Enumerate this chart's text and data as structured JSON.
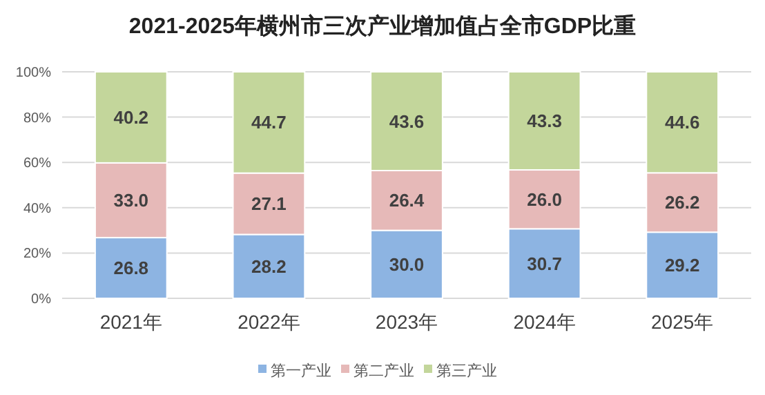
{
  "chart_data": {
    "type": "bar",
    "title": "2021-2025年横州市三次产业增加值占全市GDP比重",
    "stacked": true,
    "categories": [
      "2021年",
      "2022年",
      "2023年",
      "2024年",
      "2025年"
    ],
    "series": [
      {
        "name": "第一产业",
        "color": "#8db4e2",
        "values": [
          26.8,
          28.2,
          30.0,
          30.7,
          29.2
        ],
        "value_labels": [
          "26.8",
          "28.2",
          "30.0",
          "30.7",
          "29.2"
        ]
      },
      {
        "name": "第二产业",
        "color": "#e6b9b8",
        "values": [
          33.0,
          27.1,
          26.4,
          26.0,
          26.2
        ],
        "value_labels": [
          "33.0",
          "27.1",
          "26.4",
          "26.0",
          "26.2"
        ]
      },
      {
        "name": "第三产业",
        "color": "#c3d69b",
        "values": [
          40.2,
          44.7,
          43.6,
          43.3,
          44.6
        ],
        "value_labels": [
          "40.2",
          "44.7",
          "43.6",
          "43.3",
          "44.6"
        ]
      }
    ],
    "ylim": [
      0,
      100
    ],
    "yticks": [
      {
        "value": 0,
        "label": "0%"
      },
      {
        "value": 20,
        "label": "20%"
      },
      {
        "value": 40,
        "label": "40%"
      },
      {
        "value": 60,
        "label": "60%"
      },
      {
        "value": 80,
        "label": "80%"
      },
      {
        "value": 100,
        "label": "100%"
      }
    ],
    "grid": "y",
    "legend": "bottom"
  }
}
